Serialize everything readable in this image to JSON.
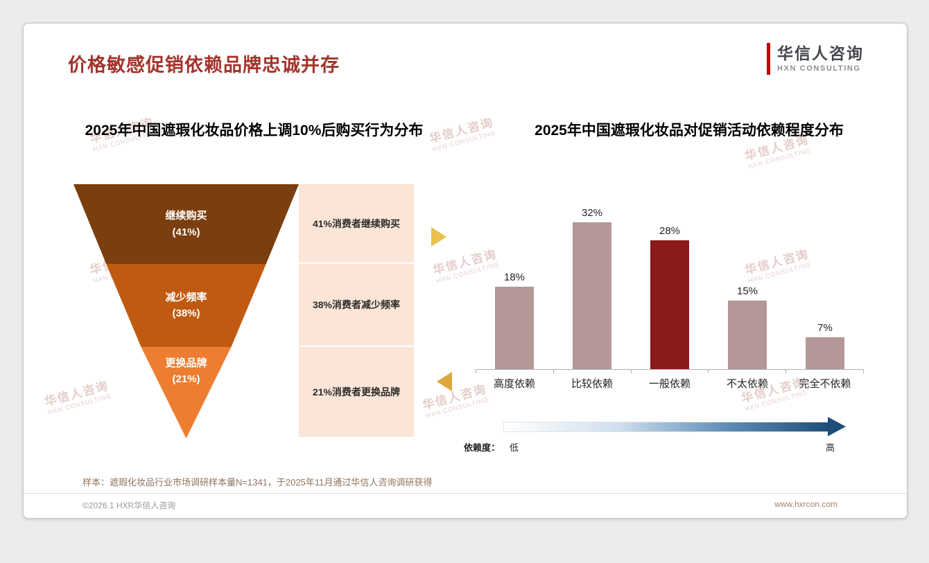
{
  "header": {
    "title": "价格敏感促销依赖品牌忠诚并存",
    "logo_cn": "华信人咨询",
    "logo_en": "HXN CONSULTING"
  },
  "watermark": {
    "cn": "华信人咨询",
    "en": "HXN CONSULTING"
  },
  "chart_data": [
    {
      "type": "funnel",
      "title": "2025年中国遮瑕化妆品价格上调10%后购买行为分布",
      "stages": [
        {
          "label": "继续购买",
          "value": 41,
          "value_label": "(41%)",
          "note": "41%消费者继续购买"
        },
        {
          "label": "减少频率",
          "value": 38,
          "value_label": "(38%)",
          "note": "38%消费者减少频率"
        },
        {
          "label": "更换品牌",
          "value": 21,
          "value_label": "(21%)",
          "note": "21%消费者更换品牌"
        }
      ]
    },
    {
      "type": "bar",
      "title": "2025年中国遮瑕化妆品对促销活动依赖程度分布",
      "categories": [
        "高度依赖",
        "比较依赖",
        "一般依赖",
        "不太依赖",
        "完全不依赖"
      ],
      "values": [
        18,
        32,
        28,
        15,
        7
      ],
      "data_labels": [
        "18%",
        "32%",
        "28%",
        "15%",
        "7%"
      ],
      "highlight_index": 2,
      "highlight_category": "一般依赖",
      "ylim": [
        0,
        35
      ],
      "grid": false,
      "axis_legend": {
        "label": "依赖度：",
        "low": "低",
        "high": "高"
      }
    }
  ],
  "colors": {
    "title_red": "#A2342C",
    "funnel_stage_colors": [
      "#7B3E0E",
      "#C05A11",
      "#ED7D31"
    ],
    "funnel_note_bg": "#FBE5D6",
    "bar_color": "#B49898",
    "bar_highlight": "#8B1A1A",
    "gradient_start": "#FFFFFF",
    "gradient_end": "#1F4E79"
  },
  "footer": {
    "note": "样本：遮瑕化妆品行业市场调研样本量N=1341，于2025年11月通过华信人咨询调研获得",
    "copyright": "©2026.1 HXR华信人咨询",
    "website": "www.hxrcon.com"
  }
}
